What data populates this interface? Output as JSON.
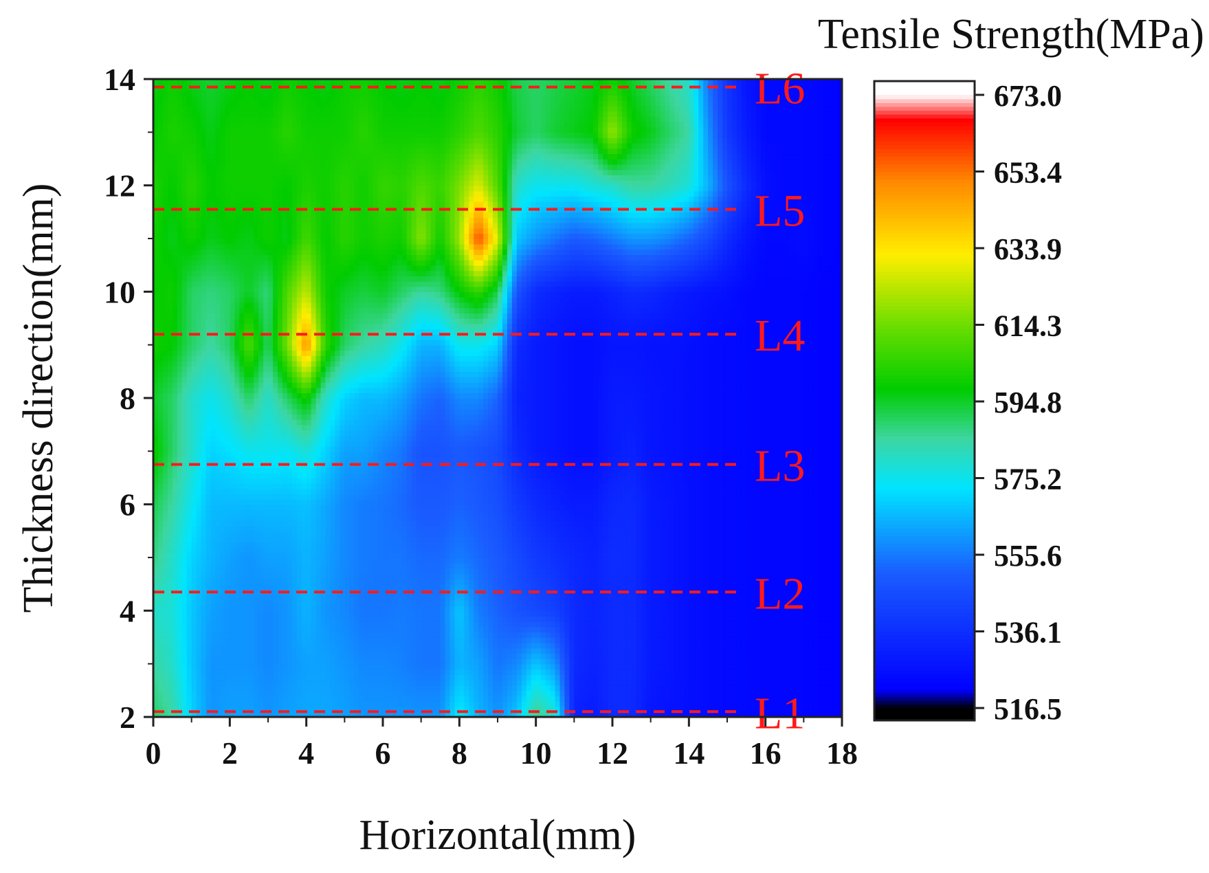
{
  "chart_data": {
    "type": "heatmap",
    "subtype": "filled-contour",
    "colorbar_title": "Tensile Strength(MPa)",
    "xlabel": "Horizontal(mm)",
    "ylabel": "Thickness direction(mm)",
    "xlim": [
      0,
      18
    ],
    "ylim": [
      2,
      14
    ],
    "x_ticks": [
      "0",
      "2",
      "4",
      "6",
      "8",
      "10",
      "12",
      "14",
      "16",
      "18"
    ],
    "y_ticks": [
      "2",
      "4",
      "6",
      "8",
      "10",
      "12",
      "14"
    ],
    "colorbar_ticks": [
      "516.5",
      "536.1",
      "555.6",
      "575.2",
      "594.8",
      "614.3",
      "633.9",
      "653.4",
      "673.0"
    ],
    "colorbar_range": [
      516.5,
      673.0
    ],
    "colormap": [
      "#000000",
      "#0000ff",
      "#1a5cff",
      "#00e5ff",
      "#3dd6a0",
      "#00cc00",
      "#66dd00",
      "#ffee00",
      "#ff8800",
      "#ff0000",
      "#ffffff"
    ],
    "grid": false,
    "x": [
      0,
      0.5,
      1,
      1.5,
      2,
      2.5,
      3,
      3.5,
      4,
      4.5,
      5,
      5.5,
      6,
      6.5,
      7,
      7.5,
      8,
      8.5,
      9,
      9.5,
      10,
      10.5,
      11,
      11.5,
      12,
      12.5,
      13,
      13.5,
      14,
      14.5,
      15,
      15.5,
      16,
      16.5,
      17,
      17.5,
      18
    ],
    "y": [
      2,
      3,
      4,
      5,
      6,
      7,
      8,
      9,
      10,
      11,
      12,
      13,
      14
    ],
    "z_description": "rows correspond to y (2 to 14 mm), columns to x (0 to 18 mm)",
    "z": [
      [
        590,
        585,
        570,
        560,
        562,
        562,
        560,
        562,
        563,
        563,
        562,
        560,
        560,
        560,
        560,
        560,
        575,
        565,
        560,
        568,
        588,
        580,
        532,
        530,
        535,
        535,
        528,
        527,
        526,
        525,
        524,
        524,
        523,
        523,
        523,
        522,
        522
      ],
      [
        585,
        580,
        568,
        560,
        560,
        560,
        558,
        560,
        562,
        562,
        560,
        558,
        558,
        557,
        555,
        555,
        565,
        562,
        555,
        558,
        568,
        560,
        535,
        532,
        535,
        535,
        530,
        528,
        526,
        525,
        524,
        524,
        523,
        523,
        523,
        522,
        522
      ],
      [
        580,
        578,
        568,
        562,
        560,
        560,
        558,
        560,
        565,
        560,
        558,
        555,
        555,
        556,
        555,
        555,
        568,
        556,
        552,
        548,
        545,
        542,
        535,
        533,
        535,
        535,
        530,
        528,
        526,
        525,
        524,
        524,
        523,
        523,
        523,
        522,
        522
      ],
      [
        588,
        580,
        570,
        565,
        562,
        560,
        562,
        562,
        565,
        562,
        558,
        556,
        555,
        555,
        553,
        553,
        556,
        553,
        550,
        545,
        540,
        537,
        534,
        532,
        536,
        535,
        530,
        528,
        526,
        525,
        524,
        524,
        523,
        523,
        523,
        522,
        522
      ],
      [
        592,
        585,
        575,
        566,
        566,
        566,
        566,
        566,
        567,
        563,
        558,
        556,
        555,
        553,
        550,
        550,
        552,
        550,
        547,
        540,
        535,
        532,
        530,
        530,
        534,
        535,
        530,
        528,
        526,
        525,
        524,
        524,
        523,
        523,
        523,
        522,
        522
      ],
      [
        600,
        590,
        580,
        570,
        572,
        575,
        575,
        574,
        578,
        570,
        562,
        562,
        558,
        555,
        548,
        548,
        550,
        548,
        545,
        535,
        530,
        528,
        526,
        526,
        530,
        532,
        528,
        527,
        526,
        525,
        524,
        524,
        523,
        523,
        523,
        522,
        522
      ],
      [
        595,
        590,
        580,
        575,
        580,
        590,
        580,
        590,
        600,
        580,
        570,
        566,
        566,
        562,
        555,
        552,
        558,
        558,
        552,
        532,
        530,
        528,
        526,
        526,
        530,
        530,
        528,
        527,
        526,
        525,
        524,
        524,
        523,
        523,
        523,
        522,
        522
      ],
      [
        600,
        598,
        590,
        585,
        590,
        610,
        590,
        615,
        650,
        605,
        590,
        585,
        582,
        575,
        565,
        565,
        575,
        575,
        570,
        535,
        530,
        528,
        526,
        526,
        528,
        528,
        527,
        527,
        526,
        525,
        524,
        524,
        523,
        523,
        523,
        522,
        522
      ],
      [
        598,
        600,
        590,
        588,
        590,
        595,
        588,
        610,
        625,
        600,
        595,
        593,
        595,
        590,
        585,
        588,
        598,
        605,
        592,
        548,
        535,
        532,
        530,
        530,
        532,
        535,
        534,
        531,
        529,
        527,
        526,
        524,
        523,
        523,
        523,
        522,
        522
      ],
      [
        600,
        596,
        600,
        596,
        598,
        596,
        600,
        596,
        608,
        598,
        604,
        600,
        602,
        600,
        618,
        600,
        620,
        660,
        628,
        568,
        560,
        555,
        550,
        552,
        556,
        560,
        560,
        557,
        552,
        545,
        535,
        528,
        524,
        524,
        525,
        523,
        522
      ],
      [
        602,
        598,
        604,
        598,
        600,
        600,
        600,
        598,
        602,
        600,
        604,
        600,
        606,
        604,
        610,
        606,
        616,
        628,
        610,
        580,
        575,
        575,
        575,
        578,
        580,
        585,
        585,
        582,
        578,
        565,
        548,
        535,
        526,
        524,
        524,
        523,
        522
      ],
      [
        598,
        602,
        600,
        596,
        600,
        600,
        600,
        604,
        600,
        600,
        600,
        604,
        600,
        600,
        600,
        600,
        604,
        610,
        604,
        594,
        590,
        594,
        596,
        598,
        620,
        600,
        596,
        590,
        585,
        560,
        540,
        530,
        524,
        524,
        524,
        523,
        522
      ],
      [
        596,
        600,
        596,
        594,
        596,
        598,
        596,
        600,
        598,
        596,
        600,
        600,
        598,
        596,
        598,
        596,
        600,
        604,
        600,
        592,
        590,
        592,
        594,
        596,
        600,
        595,
        590,
        585,
        580,
        555,
        538,
        528,
        524,
        524,
        524,
        523,
        522
      ]
    ],
    "reference_lines": [
      {
        "label": "L1",
        "y": 2.1
      },
      {
        "label": "L2",
        "y": 4.35
      },
      {
        "label": "L3",
        "y": 6.75
      },
      {
        "label": "L4",
        "y": 9.2
      },
      {
        "label": "L5",
        "y": 11.55
      },
      {
        "label": "L6",
        "y": 13.85
      }
    ],
    "reference_line_style": "dashed",
    "reference_line_color": "#ff1a1a"
  }
}
